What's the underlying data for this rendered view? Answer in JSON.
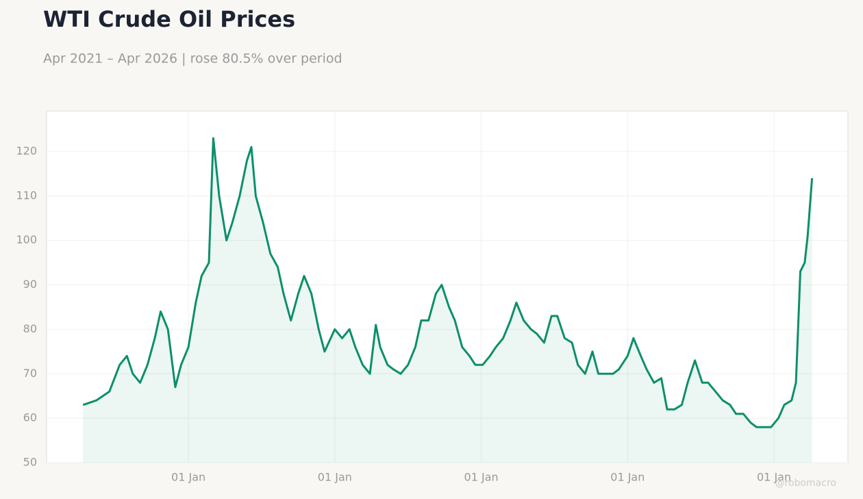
{
  "chart_data": {
    "type": "line",
    "title": "WTI Crude Oil Prices",
    "subtitle": "Apr 2021 – Apr 2026 | rose 80.5% over period",
    "watermark": "@robomacro",
    "x": [
      2021.28,
      2021.37,
      2021.46,
      2021.53,
      2021.58,
      2021.62,
      2021.67,
      2021.72,
      2021.77,
      2021.81,
      2021.86,
      2021.91,
      2021.95,
      2022.0,
      2022.05,
      2022.09,
      2022.14,
      2022.17,
      2022.21,
      2022.26,
      2022.3,
      2022.35,
      2022.4,
      2022.43,
      2022.46,
      2022.51,
      2022.56,
      2022.61,
      2022.65,
      2022.7,
      2022.75,
      2022.79,
      2022.84,
      2022.89,
      2022.93,
      2023.0,
      2023.05,
      2023.1,
      2023.14,
      2023.19,
      2023.24,
      2023.28,
      2023.31,
      2023.36,
      2023.4,
      2023.45,
      2023.5,
      2023.55,
      2023.59,
      2023.64,
      2023.69,
      2023.73,
      2023.78,
      2023.82,
      2023.87,
      2023.92,
      2023.96,
      2024.01,
      2024.06,
      2024.1,
      2024.15,
      2024.2,
      2024.24,
      2024.29,
      2024.34,
      2024.38,
      2024.43,
      2024.48,
      2024.52,
      2024.57,
      2024.62,
      2024.66,
      2024.71,
      2024.76,
      2024.8,
      2024.85,
      2024.9,
      2024.94,
      2025.0,
      2025.04,
      2025.09,
      2025.13,
      2025.18,
      2025.23,
      2025.27,
      2025.32,
      2025.37,
      2025.41,
      2025.46,
      2025.51,
      2025.55,
      2025.6,
      2025.65,
      2025.7,
      2025.74,
      2025.79,
      2025.84,
      2025.88,
      2025.93,
      2025.98,
      2026.03,
      2026.07,
      2026.12,
      2026.15,
      2026.18,
      2026.21,
      2026.23,
      2026.26
    ],
    "series": [
      {
        "name": "WTI",
        "color": "#0b8f6a",
        "values": [
          63,
          64,
          66,
          72,
          74,
          70,
          68,
          72,
          78,
          84,
          80,
          67,
          72,
          76,
          86,
          92,
          95,
          123,
          110,
          100,
          104,
          110,
          118,
          121,
          110,
          104,
          97,
          94,
          88,
          82,
          88,
          92,
          88,
          80,
          75,
          80,
          78,
          80,
          76,
          72,
          70,
          81,
          76,
          72,
          71,
          70,
          72,
          76,
          82,
          82,
          88,
          90,
          85,
          82,
          76,
          74,
          72,
          72,
          74,
          76,
          78,
          82,
          86,
          82,
          80,
          79,
          77,
          83,
          83,
          78,
          77,
          72,
          70,
          75,
          70,
          70,
          70,
          71,
          74,
          78,
          74,
          71,
          68,
          69,
          62,
          62,
          63,
          68,
          73,
          68,
          68,
          66,
          64,
          63,
          61,
          61,
          59,
          58,
          58,
          58,
          60,
          63,
          64,
          68,
          93,
          95,
          101,
          114
        ]
      }
    ],
    "xlim": [
      2021.031,
      2026.505
    ],
    "xticks": [
      {
        "value": 2022,
        "label": "01 Jan"
      },
      {
        "value": 2023,
        "label": "01 Jan"
      },
      {
        "value": 2024,
        "label": "01 Jan"
      },
      {
        "value": 2025,
        "label": "01 Jan"
      },
      {
        "value": 2026,
        "label": "01 Jan"
      }
    ],
    "ylim": [
      50,
      129.1
    ],
    "yticks": [
      50,
      60,
      70,
      80,
      90,
      100,
      110,
      120
    ],
    "grid": true
  }
}
